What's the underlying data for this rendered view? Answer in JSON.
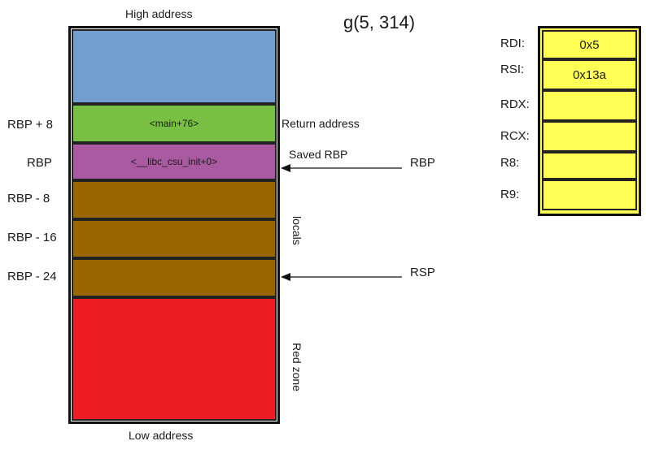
{
  "title": "g(5, 314)",
  "stack": {
    "high_label": "High address",
    "low_label": "Low address",
    "cells": {
      "green": "<main+76>",
      "purple": "<__libc_csu_init+0>"
    },
    "left_labels": [
      "RBP + 8",
      "RBP",
      "RBP - 8",
      "RBP - 16",
      "RBP - 24"
    ],
    "right_labels": {
      "return": "Return address",
      "saved": "Saved RBP",
      "locals": "locals",
      "redzone": "Red zone"
    },
    "pointers": {
      "rbp": "RBP",
      "rsp": "RSP"
    }
  },
  "registers": [
    {
      "name": "RDI:",
      "value": "0x5"
    },
    {
      "name": "RSI:",
      "value": "0x13a"
    },
    {
      "name": "RDX:",
      "value": ""
    },
    {
      "name": "RCX:",
      "value": ""
    },
    {
      "name": "R8:",
      "value": ""
    },
    {
      "name": "R9:",
      "value": ""
    }
  ],
  "colors": {
    "blue": "#729fcf",
    "green": "#77c043",
    "purple": "#a95aa1",
    "brown": "#996600",
    "red": "#ee1c25",
    "yellow": "#ffff55"
  }
}
